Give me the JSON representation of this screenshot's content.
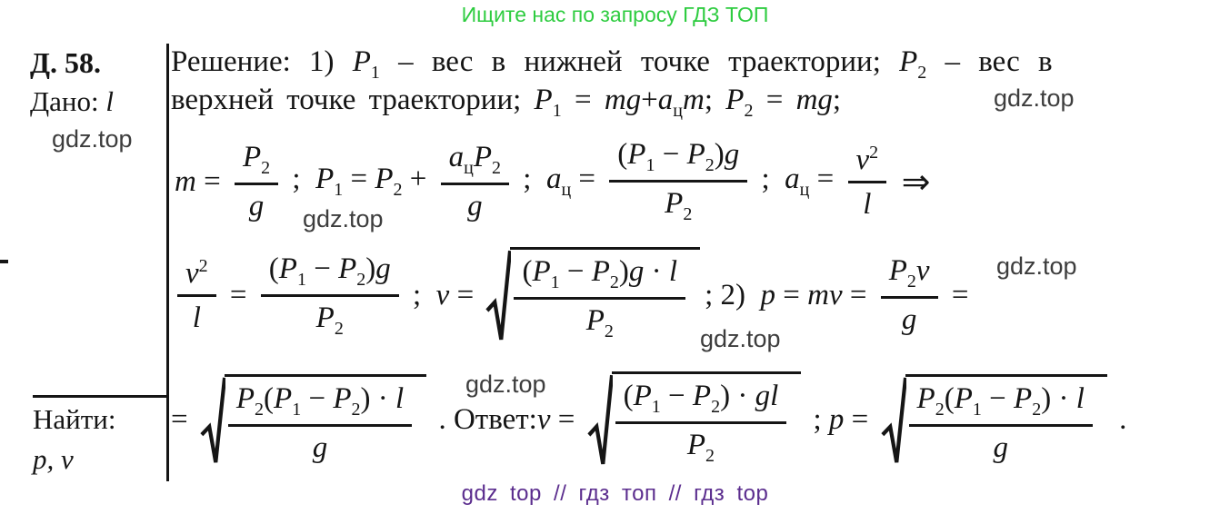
{
  "header": {
    "promo_text": "Ищите нас по запросу ГДЗ ТОП"
  },
  "colors": {
    "green": "#2ecc40",
    "purple": "#5b2d8e",
    "ink": "#151515",
    "watermark_gray": "#3d3d3d"
  },
  "problem": {
    "number": "Д. 58.",
    "given_label": "Дано:",
    "given_symbol": "l",
    "find_label": "Найти:",
    "find_symbols": "p, v"
  },
  "watermark_text": "gdz.top",
  "footer": {
    "text": "gdz top  //  гдз топ  //  гдз top"
  },
  "math": {
    "text_line_1": [
      {
        "t": "rm",
        "v": "Решение: 1) "
      },
      {
        "t": "var",
        "v": "P",
        "sub": "1"
      },
      {
        "t": "rm",
        "v": " – вес в нижней точке траектории; "
      },
      {
        "t": "var",
        "v": "P",
        "sub": "2"
      },
      {
        "t": "rm",
        "v": " – вес в"
      }
    ],
    "text_line_2": [
      {
        "t": "rm",
        "v": "верхней точке траектории; "
      },
      {
        "t": "var",
        "v": "P",
        "sub": "1"
      },
      {
        "t": "rm",
        "v": " = "
      },
      {
        "t": "it",
        "v": "mg"
      },
      {
        "t": "rm",
        "v": "+"
      },
      {
        "t": "var",
        "v": "a",
        "sub": "ц"
      },
      {
        "t": "it",
        "v": "m"
      },
      {
        "t": "rm",
        "v": "; "
      },
      {
        "t": "var",
        "v": "P",
        "sub": "2"
      },
      {
        "t": "rm",
        "v": " = "
      },
      {
        "t": "it",
        "v": "mg"
      },
      {
        "t": "rm",
        "v": ";"
      }
    ],
    "row1": [
      {
        "t": "it",
        "v": "m"
      },
      {
        "t": "rm",
        "v": " = "
      },
      {
        "t": "frac",
        "num": [
          {
            "t": "var",
            "v": "P",
            "sub": "2"
          }
        ],
        "den": [
          {
            "t": "it",
            "v": "g"
          }
        ]
      },
      {
        "t": "rm",
        "v": " ;  "
      },
      {
        "t": "var",
        "v": "P",
        "sub": "1"
      },
      {
        "t": "rm",
        "v": " = "
      },
      {
        "t": "var",
        "v": "P",
        "sub": "2"
      },
      {
        "t": "rm",
        "v": " + "
      },
      {
        "t": "frac",
        "num": [
          {
            "t": "var",
            "v": "a",
            "sub": "ц"
          },
          {
            "t": "var",
            "v": "P",
            "sub": "2"
          }
        ],
        "den": [
          {
            "t": "it",
            "v": "g"
          }
        ]
      },
      {
        "t": "rm",
        "v": " ;  "
      },
      {
        "t": "var",
        "v": "a",
        "sub": "ц"
      },
      {
        "t": "rm",
        "v": " = "
      },
      {
        "t": "frac",
        "num": [
          {
            "t": "rm",
            "v": "("
          },
          {
            "t": "var",
            "v": "P",
            "sub": "1"
          },
          {
            "t": "rm",
            "v": " − "
          },
          {
            "t": "var",
            "v": "P",
            "sub": "2"
          },
          {
            "t": "rm",
            "v": ")"
          },
          {
            "t": "it",
            "v": "g"
          }
        ],
        "den": [
          {
            "t": "var",
            "v": "P",
            "sub": "2"
          }
        ]
      },
      {
        "t": "rm",
        "v": " ;  "
      },
      {
        "t": "var",
        "v": "a",
        "sub": "ц"
      },
      {
        "t": "rm",
        "v": " = "
      },
      {
        "t": "frac",
        "num": [
          {
            "t": "var",
            "v": "v",
            "sup": "2"
          }
        ],
        "den": [
          {
            "t": "it",
            "v": "l"
          }
        ]
      },
      {
        "t": "rm",
        "v": " ⇒",
        "cls": "big"
      }
    ],
    "row2": [
      {
        "t": "frac",
        "num": [
          {
            "t": "var",
            "v": "v",
            "sup": "2"
          }
        ],
        "den": [
          {
            "t": "it",
            "v": "l"
          }
        ]
      },
      {
        "t": "rm",
        "v": " = "
      },
      {
        "t": "frac",
        "num": [
          {
            "t": "rm",
            "v": "("
          },
          {
            "t": "var",
            "v": "P",
            "sub": "1"
          },
          {
            "t": "rm",
            "v": " − "
          },
          {
            "t": "var",
            "v": "P",
            "sub": "2"
          },
          {
            "t": "rm",
            "v": ")"
          },
          {
            "t": "it",
            "v": "g"
          }
        ],
        "den": [
          {
            "t": "var",
            "v": "P",
            "sub": "2"
          }
        ]
      },
      {
        "t": "rm",
        "v": " ;  "
      },
      {
        "t": "it",
        "v": "v"
      },
      {
        "t": "rm",
        "v": " = "
      },
      {
        "t": "sqrt",
        "c": [
          {
            "t": "frac",
            "num": [
              {
                "t": "rm",
                "v": "("
              },
              {
                "t": "var",
                "v": "P",
                "sub": "1"
              },
              {
                "t": "rm",
                "v": " − "
              },
              {
                "t": "var",
                "v": "P",
                "sub": "2"
              },
              {
                "t": "rm",
                "v": ")"
              },
              {
                "t": "it",
                "v": "g"
              },
              {
                "t": "rm",
                "v": " · "
              },
              {
                "t": "it",
                "v": "l"
              }
            ],
            "den": [
              {
                "t": "var",
                "v": "P",
                "sub": "2"
              }
            ]
          }
        ]
      },
      {
        "t": "rm",
        "v": "; 2)  "
      },
      {
        "t": "it",
        "v": "p"
      },
      {
        "t": "rm",
        "v": " = "
      },
      {
        "t": "it",
        "v": "mv"
      },
      {
        "t": "rm",
        "v": " = "
      },
      {
        "t": "frac",
        "num": [
          {
            "t": "var",
            "v": "P",
            "sub": "2"
          },
          {
            "t": "it",
            "v": "v"
          }
        ],
        "den": [
          {
            "t": "it",
            "v": "g"
          }
        ]
      },
      {
        "t": "rm",
        "v": " ="
      }
    ],
    "row3": [
      {
        "t": "rm",
        "v": "= "
      },
      {
        "t": "sqrt",
        "c": [
          {
            "t": "frac",
            "num": [
              {
                "t": "var",
                "v": "P",
                "sub": "2"
              },
              {
                "t": "rm",
                "v": "("
              },
              {
                "t": "var",
                "v": "P",
                "sub": "1"
              },
              {
                "t": "rm",
                "v": " − "
              },
              {
                "t": "var",
                "v": "P",
                "sub": "2"
              },
              {
                "t": "rm",
                "v": ")"
              },
              {
                "t": "rm",
                "v": " · "
              },
              {
                "t": "it",
                "v": "l"
              }
            ],
            "den": [
              {
                "t": "it",
                "v": "g"
              }
            ]
          }
        ]
      },
      {
        "t": "rm",
        "v": " . Ответ:"
      },
      {
        "t": "it",
        "v": "v"
      },
      {
        "t": "rm",
        "v": " = "
      },
      {
        "t": "sqrt",
        "c": [
          {
            "t": "frac",
            "num": [
              {
                "t": "rm",
                "v": "("
              },
              {
                "t": "var",
                "v": "P",
                "sub": "1"
              },
              {
                "t": "rm",
                "v": " − "
              },
              {
                "t": "var",
                "v": "P",
                "sub": "2"
              },
              {
                "t": "rm",
                "v": ")"
              },
              {
                "t": "rm",
                "v": " · "
              },
              {
                "t": "it",
                "v": "gl"
              }
            ],
            "den": [
              {
                "t": "var",
                "v": "P",
                "sub": "2"
              }
            ]
          }
        ]
      },
      {
        "t": "rm",
        "v": " ; "
      },
      {
        "t": "it",
        "v": "p"
      },
      {
        "t": "rm",
        "v": " = "
      },
      {
        "t": "sqrt",
        "c": [
          {
            "t": "frac",
            "num": [
              {
                "t": "var",
                "v": "P",
                "sub": "2"
              },
              {
                "t": "rm",
                "v": "("
              },
              {
                "t": "var",
                "v": "P",
                "sub": "1"
              },
              {
                "t": "rm",
                "v": " − "
              },
              {
                "t": "var",
                "v": "P",
                "sub": "2"
              },
              {
                "t": "rm",
                "v": ")"
              },
              {
                "t": "rm",
                "v": " · "
              },
              {
                "t": "it",
                "v": "l"
              }
            ],
            "den": [
              {
                "t": "it",
                "v": "g"
              }
            ]
          }
        ]
      },
      {
        "t": "rm",
        "v": " ."
      }
    ]
  }
}
